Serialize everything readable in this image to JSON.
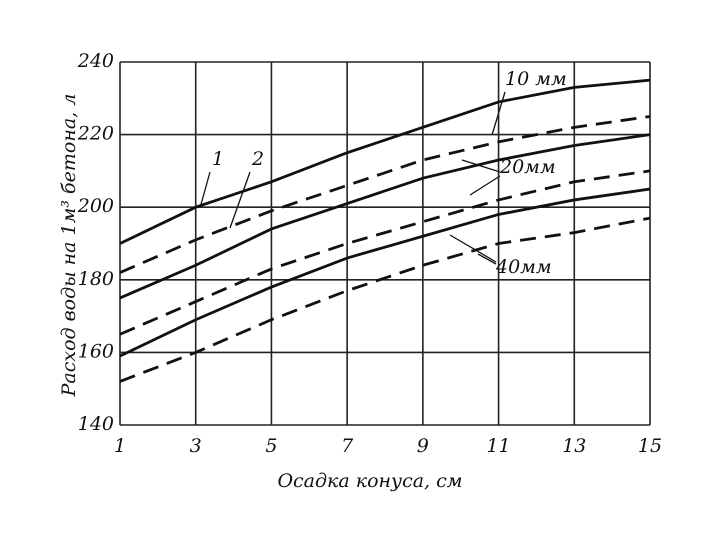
{
  "chart_data": {
    "type": "line",
    "xlabel": "Осадка конуса, см",
    "ylabel": "Расход воды на 1м³ бетона, л",
    "x": [
      1,
      3,
      5,
      7,
      9,
      11,
      13,
      15
    ],
    "series": [
      {
        "color": "#111",
        "style": "solid",
        "values": [
          190,
          200,
          207,
          215,
          222,
          229,
          233,
          235
        ]
      },
      {
        "color": "#111",
        "style": "dashed",
        "values": [
          182,
          191,
          199,
          206,
          213,
          218,
          222,
          225
        ]
      },
      {
        "color": "#111",
        "style": "solid",
        "values": [
          175,
          184,
          194,
          201,
          208,
          213,
          217,
          220
        ]
      },
      {
        "color": "#111",
        "style": "dashed",
        "values": [
          165,
          174,
          183,
          190,
          196,
          202,
          207,
          210
        ]
      },
      {
        "color": "#111",
        "style": "solid",
        "values": [
          159,
          169,
          178,
          186,
          192,
          198,
          202,
          205
        ]
      },
      {
        "color": "#111",
        "style": "dashed",
        "values": [
          152,
          160,
          169,
          177,
          184,
          190,
          193,
          197
        ]
      }
    ],
    "annotations": [
      "10 мм",
      "20мм",
      "40мм",
      "1",
      "2"
    ],
    "xlim": [
      1,
      15
    ],
    "xticks": [
      1,
      3,
      5,
      7,
      9,
      11,
      13,
      15
    ],
    "ylim": [
      140,
      240
    ],
    "yticks": [
      140,
      160,
      180,
      200,
      220,
      240
    ],
    "grid": true
  }
}
